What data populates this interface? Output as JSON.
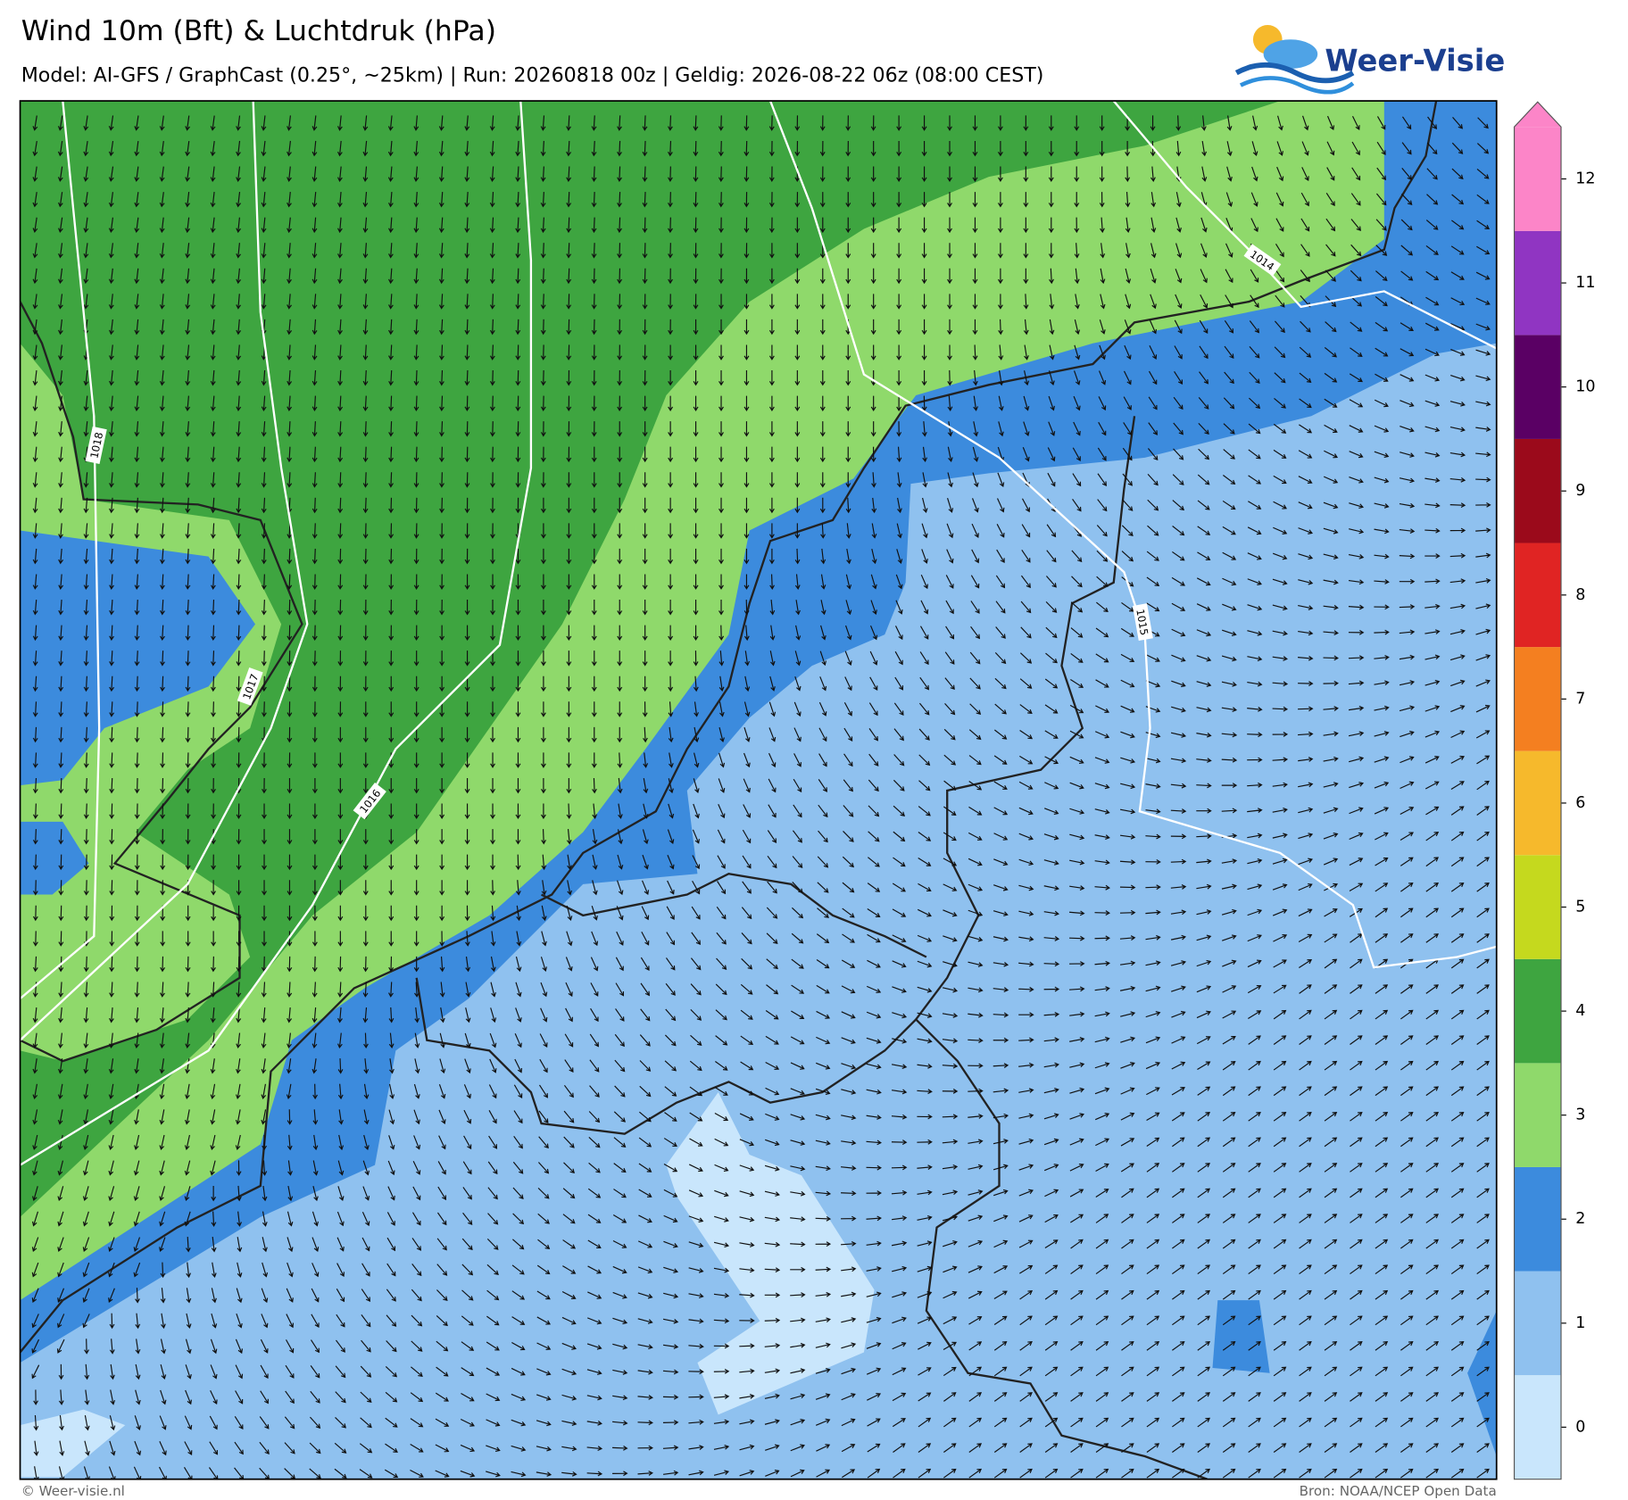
{
  "header": {
    "title": "Wind 10m (Bft) & Luchtdruk (hPa)",
    "subtitle": "Model: AI-GFS / GraphCast (0.25°, ~25km)  |  Run: 20260818 00z  |  Geldig: 2026-08-22 06z (08:00 CEST)"
  },
  "logo": {
    "text": "Weer-Visie"
  },
  "map": {
    "isobar_labels": [
      1018,
      1017,
      1016,
      1015,
      1014
    ]
  },
  "colorbar": {
    "levels": [
      0,
      1,
      2,
      3,
      4,
      5,
      6,
      7,
      8,
      9,
      10,
      11,
      12
    ],
    "colors": [
      "#c9e6fc",
      "#8fc1ef",
      "#3c8bdd",
      "#8fd96b",
      "#3ea540",
      "#c5d91e",
      "#f6b92c",
      "#f47f20",
      "#e02423",
      "#9b0a1b",
      "#5a0064",
      "#9035c2",
      "#fc85c8"
    ]
  },
  "footer": {
    "left": "© Weer-visie.nl",
    "right": "Bron: NOAA/NCEP Open Data"
  }
}
